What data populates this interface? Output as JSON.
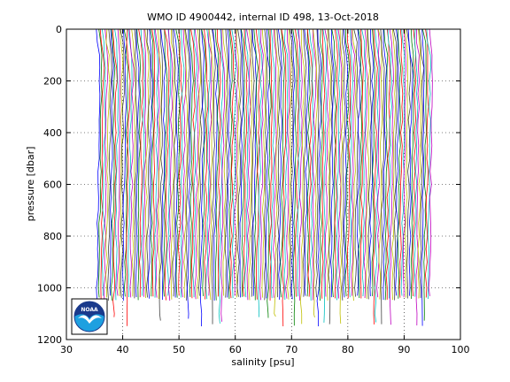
{
  "chart_data": {
    "type": "line",
    "title": "WMO ID 4900442, internal ID 498, 13-Oct-2018",
    "xlabel": "salinity [psu]",
    "ylabel": "pressure [dbar]",
    "xlim": [
      30,
      100
    ],
    "ylim": [
      0,
      1200
    ],
    "y_reversed": true,
    "xticks": [
      30,
      40,
      50,
      60,
      70,
      80,
      90,
      100
    ],
    "yticks": [
      0,
      200,
      400,
      600,
      800,
      1000,
      1200
    ],
    "xtick_labels": [
      "30",
      "40",
      "50",
      "60",
      "70",
      "80",
      "90",
      "100"
    ],
    "ytick_labels": [
      "0",
      "200",
      "400",
      "600",
      "800",
      "1000",
      "1200"
    ],
    "grid": "dotted",
    "profiles": {
      "count": 180,
      "x_offset_start": 36.0,
      "x_offset_step": 0.33,
      "pressure_top": 0,
      "pressure_bottom_typical": 1050,
      "pressure_bottom_deep": 1110,
      "shape": "offset salinity profiles, each drawn as a near-vertical line from 0 to ~1000-1100 dbar"
    },
    "colors": [
      "#0000ff",
      "#008000",
      "#ff0000",
      "#00bfbf",
      "#bf00bf",
      "#bfbf00",
      "#404040"
    ]
  },
  "logo": {
    "text": "NOAA",
    "colors": {
      "ring": "#ffffff",
      "top": "#1a3a8c",
      "bottom": "#1ea0e0",
      "bird": "#ffffff"
    }
  }
}
